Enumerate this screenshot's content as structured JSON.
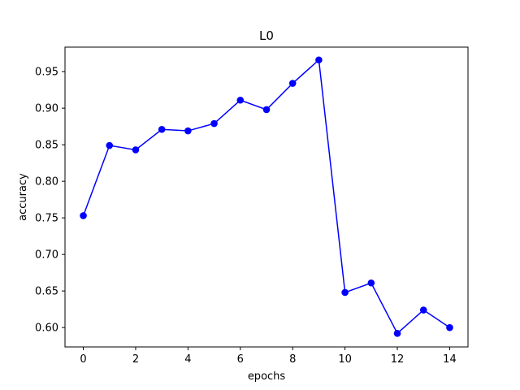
{
  "chart_data": {
    "type": "line",
    "title": "L0",
    "xlabel": "epochs",
    "ylabel": "accuracy",
    "xlim": [
      -0.7,
      14.7
    ],
    "ylim": [
      0.5735,
      0.9835
    ],
    "xticks": [
      0,
      2,
      4,
      6,
      8,
      10,
      12,
      14
    ],
    "yticks": [
      0.6,
      0.65,
      0.7,
      0.75,
      0.8,
      0.85,
      0.9,
      0.95
    ],
    "grid": false,
    "legend": "none",
    "series": [
      {
        "color": "#0000ff",
        "marker": "circle",
        "x": [
          0,
          1,
          2,
          3,
          4,
          5,
          6,
          7,
          8,
          9,
          10,
          11,
          12,
          13,
          14
        ],
        "y": [
          0.753,
          0.849,
          0.843,
          0.871,
          0.869,
          0.879,
          0.911,
          0.898,
          0.934,
          0.966,
          0.648,
          0.661,
          0.592,
          0.624,
          0.6
        ]
      }
    ]
  }
}
